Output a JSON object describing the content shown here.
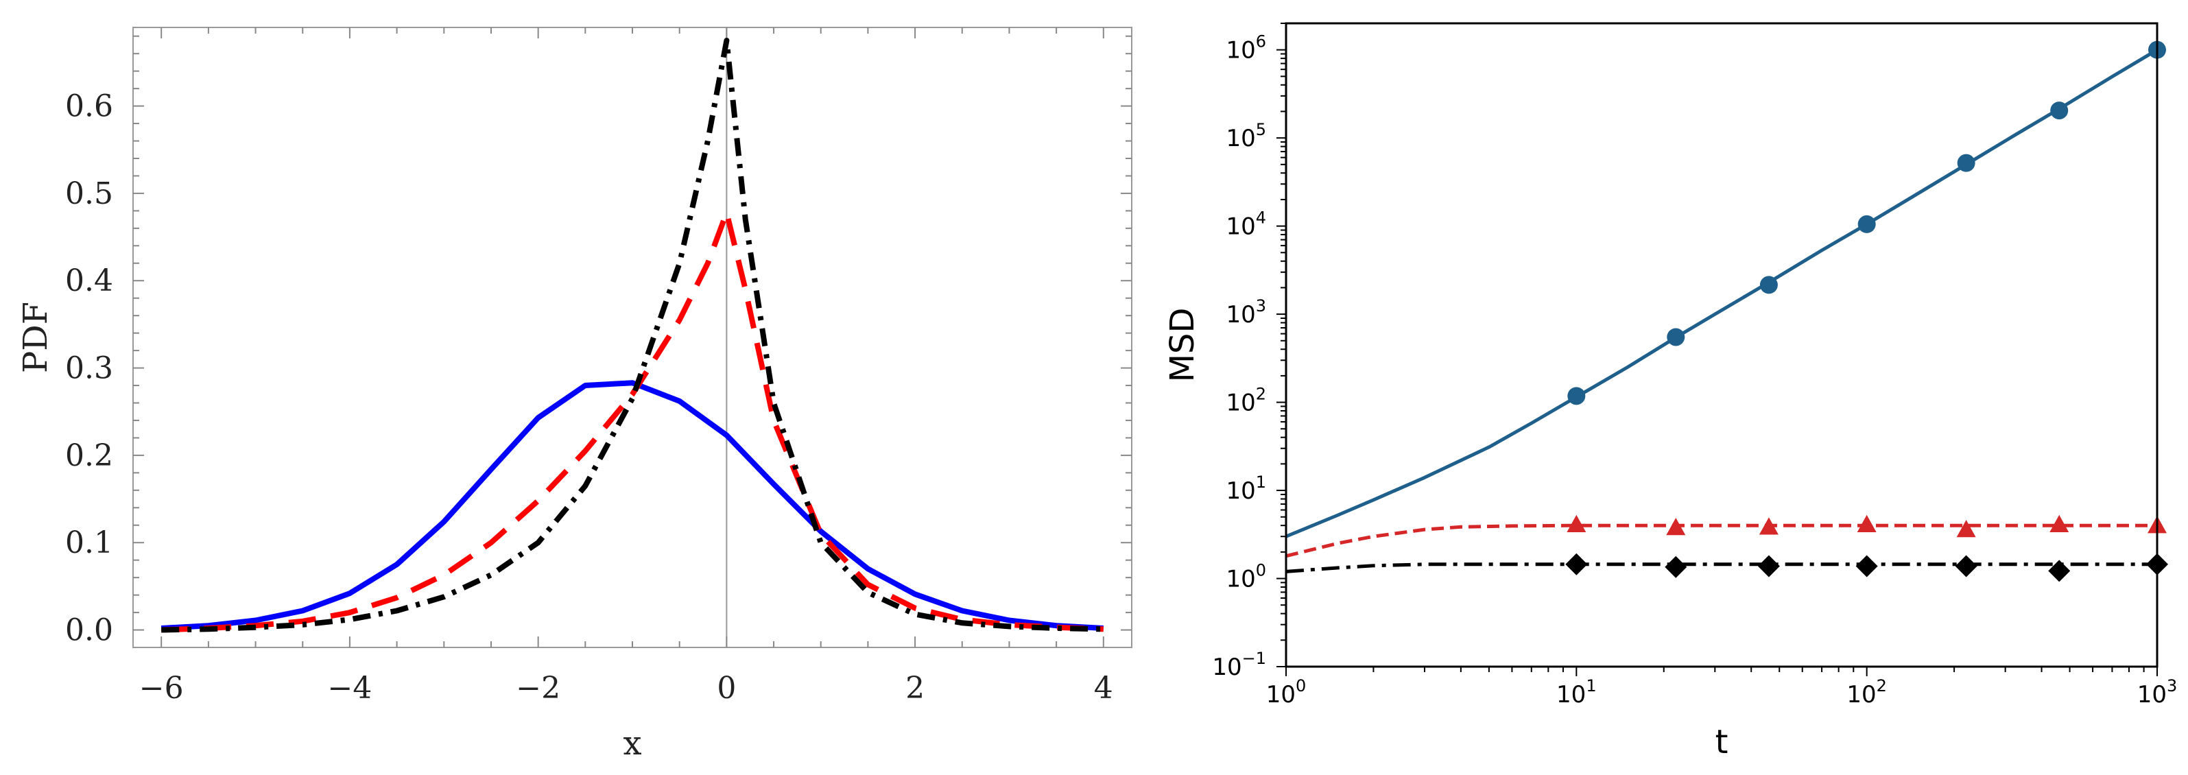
{
  "chart_data": [
    {
      "type": "line",
      "title": "",
      "xlabel": "x",
      "ylabel": "PDF",
      "xlim": [
        -6.3,
        4.3
      ],
      "ylim": [
        -0.02,
        0.69
      ],
      "grid": false,
      "legend": "none",
      "x_ticks": [
        -6,
        -4,
        -2,
        0,
        2,
        4
      ],
      "x_tick_labels": [
        "−6",
        "−4",
        "−2",
        "0",
        "2",
        "4"
      ],
      "y_ticks": [
        0.0,
        0.1,
        0.2,
        0.3,
        0.4,
        0.5,
        0.6
      ],
      "y_tick_labels": [
        "0.0",
        "0.1",
        "0.2",
        "0.3",
        "0.4",
        "0.5",
        "0.6"
      ],
      "series": [
        {
          "name": "solid blue",
          "color": "#0000ff",
          "style": "solid",
          "x": [
            -6,
            -5.5,
            -5,
            -4.5,
            -4,
            -3.5,
            -3,
            -2.5,
            -2,
            -1.5,
            -1,
            -0.5,
            0,
            0.5,
            1,
            1.5,
            2,
            2.5,
            3,
            3.5,
            4
          ],
          "y": [
            0.002,
            0.005,
            0.011,
            0.022,
            0.042,
            0.075,
            0.124,
            0.184,
            0.243,
            0.28,
            0.283,
            0.262,
            0.223,
            0.167,
            0.113,
            0.07,
            0.041,
            0.022,
            0.011,
            0.005,
            0.002
          ]
        },
        {
          "name": "dashed red",
          "color": "#ff0000",
          "style": "dashed",
          "x": [
            -6,
            -5.5,
            -5,
            -4.5,
            -4,
            -3.5,
            -3,
            -2.5,
            -2,
            -1.5,
            -1,
            -0.5,
            -0.2,
            0,
            0.2,
            0.5,
            1,
            1.5,
            2,
            2.5,
            3,
            3.5,
            4
          ],
          "y": [
            0.0,
            0.002,
            0.005,
            0.01,
            0.02,
            0.037,
            0.063,
            0.1,
            0.148,
            0.205,
            0.27,
            0.355,
            0.42,
            0.478,
            0.39,
            0.24,
            0.11,
            0.052,
            0.025,
            0.012,
            0.006,
            0.003,
            0.001
          ]
        },
        {
          "name": "dash-dot black",
          "color": "#000000",
          "style": "dashdot",
          "x": [
            -6,
            -5.5,
            -5,
            -4.5,
            -4,
            -3.5,
            -3,
            -2.5,
            -2,
            -1.5,
            -1,
            -0.5,
            -0.2,
            0,
            0.2,
            0.5,
            1,
            1.5,
            2,
            2.5,
            3,
            3.5,
            4
          ],
          "y": [
            0.0,
            0.001,
            0.003,
            0.006,
            0.012,
            0.022,
            0.038,
            0.063,
            0.1,
            0.165,
            0.265,
            0.42,
            0.56,
            0.675,
            0.47,
            0.26,
            0.1,
            0.043,
            0.018,
            0.008,
            0.004,
            0.002,
            0.001
          ]
        }
      ]
    },
    {
      "type": "line",
      "title": "",
      "xlabel": "t",
      "ylabel": "MSD",
      "xscale": "log",
      "yscale": "log",
      "xlim": [
        1,
        1000
      ],
      "ylim": [
        0.1,
        2000000
      ],
      "grid": false,
      "legend": "none",
      "x_ticks": [
        1,
        10,
        100,
        1000
      ],
      "x_tick_labels": [
        {
          "base": "10",
          "exp": "0"
        },
        {
          "base": "10",
          "exp": "1"
        },
        {
          "base": "10",
          "exp": "2"
        },
        {
          "base": "10",
          "exp": "3"
        }
      ],
      "y_ticks": [
        0.1,
        1,
        10,
        100,
        1000,
        10000,
        100000,
        1000000
      ],
      "y_tick_labels": [
        {
          "base": "10",
          "exp": "−1"
        },
        {
          "base": "10",
          "exp": "0"
        },
        {
          "base": "10",
          "exp": "1"
        },
        {
          "base": "10",
          "exp": "2"
        },
        {
          "base": "10",
          "exp": "3"
        },
        {
          "base": "10",
          "exp": "4"
        },
        {
          "base": "10",
          "exp": "5"
        },
        {
          "base": "10",
          "exp": "6"
        }
      ],
      "series": [
        {
          "name": "blue solid (theory)",
          "color": "#1f5f8b",
          "style": "solid",
          "x": [
            1,
            1.5,
            2,
            3,
            5,
            7,
            10,
            15,
            22,
            30,
            45,
            70,
            100,
            150,
            220,
            330,
            450,
            700,
            1000
          ],
          "y": [
            3,
            5.2,
            7.8,
            14,
            31,
            58,
            115,
            250,
            545,
            1000,
            2200,
            5300,
            10500,
            23400,
            50000,
            112000,
            205000,
            496000,
            1000000
          ]
        },
        {
          "name": "blue circles (simulation)",
          "color": "#1f5f8b",
          "style": "markers",
          "marker": "circle",
          "x": [
            10,
            22,
            46,
            100,
            220,
            460,
            1000
          ],
          "y": [
            118,
            550,
            2150,
            10500,
            52000,
            205000,
            1000000
          ]
        },
        {
          "name": "red dashed (theory)",
          "color": "#d62728",
          "style": "dashed",
          "x": [
            1,
            1.5,
            2,
            3,
            4,
            6,
            10,
            30,
            100,
            300,
            1000
          ],
          "y": [
            1.8,
            2.5,
            3.0,
            3.6,
            3.85,
            3.95,
            4.0,
            4.0,
            4.0,
            4.0,
            4.0
          ]
        },
        {
          "name": "red triangles (simulation)",
          "color": "#d62728",
          "style": "markers",
          "marker": "triangle",
          "x": [
            10,
            22,
            46,
            100,
            220,
            460,
            1000
          ],
          "y": [
            4.1,
            3.8,
            3.85,
            4.1,
            3.6,
            4.1,
            4.0
          ]
        },
        {
          "name": "black dash-dot (theory)",
          "color": "#000000",
          "style": "dashdot",
          "x": [
            1,
            1.5,
            2,
            3,
            5,
            10,
            100,
            1000
          ],
          "y": [
            1.2,
            1.32,
            1.4,
            1.45,
            1.45,
            1.45,
            1.45,
            1.45
          ]
        },
        {
          "name": "black diamonds (simulation)",
          "color": "#000000",
          "style": "markers",
          "marker": "diamond",
          "x": [
            10,
            22,
            46,
            100,
            220,
            460,
            1000
          ],
          "y": [
            1.45,
            1.35,
            1.38,
            1.38,
            1.38,
            1.22,
            1.45
          ]
        }
      ]
    }
  ]
}
